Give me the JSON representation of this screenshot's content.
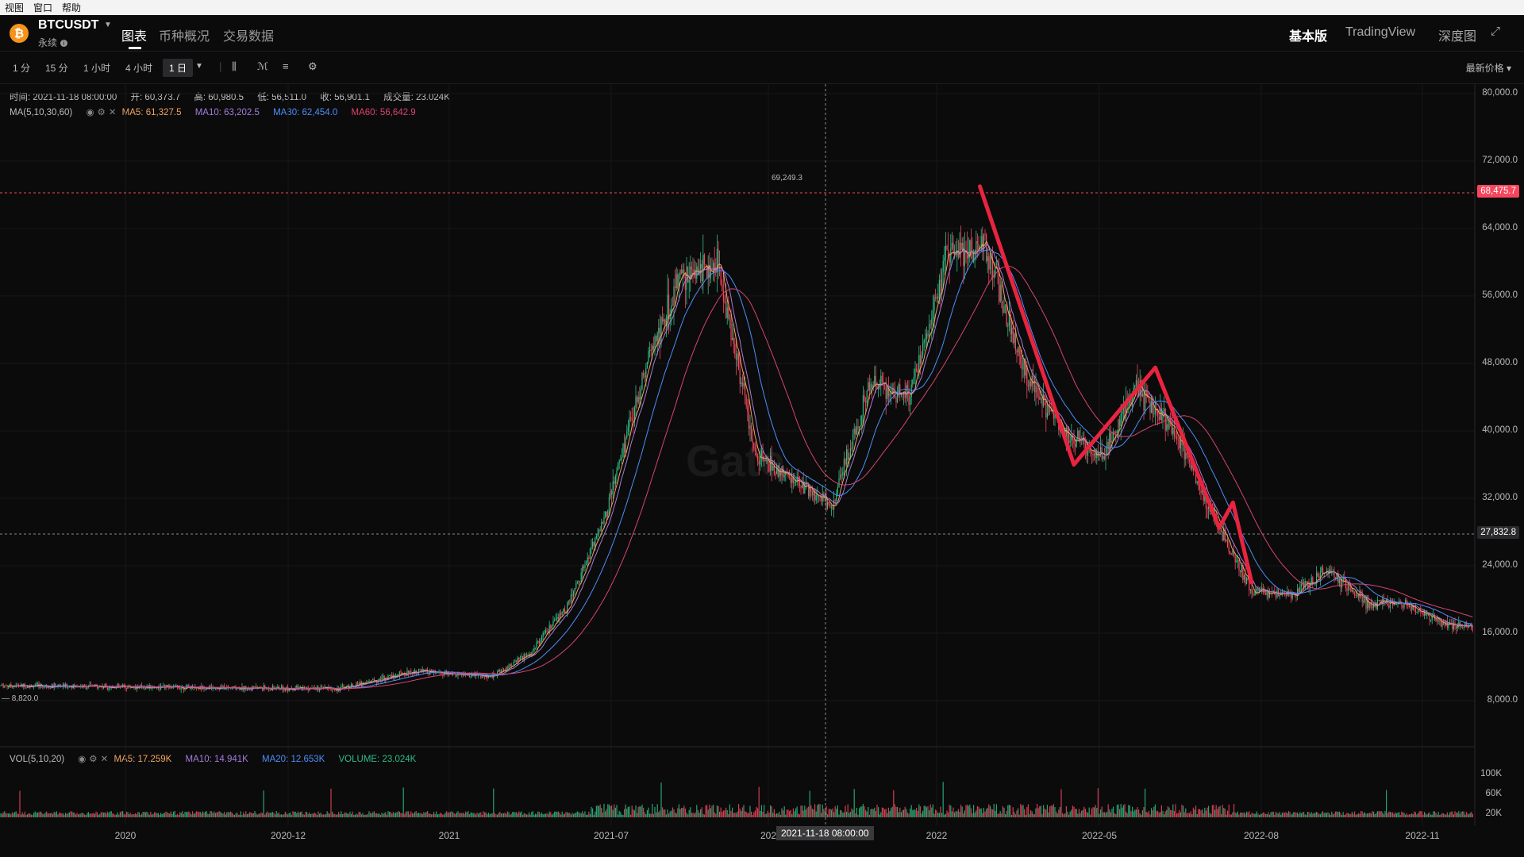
{
  "menubar": [
    "视图",
    "窗口",
    "帮助"
  ],
  "header": {
    "coin_glyph": "₿",
    "symbol": "BTCUSDT",
    "subtitle": "永续",
    "tabs": [
      "图表",
      "币种概况",
      "交易数据"
    ],
    "right_tabs": [
      "基本版",
      "TradingView",
      "深度图"
    ]
  },
  "toolbar": {
    "timeframes": [
      "1 分",
      "15 分",
      "1 小时",
      "4 小时",
      "1 日"
    ],
    "latest_price_label": "最新价格"
  },
  "info": {
    "time": "时间: 2021-11-18 08:00:00",
    "open": "开: 60,373.7",
    "high": "高: 60,980.5",
    "low": "低: 56,511.0",
    "close": "收: 56,901.1",
    "volume": "成交量: 23.024K"
  },
  "ma": {
    "label": "MA(5,10,30,60)",
    "ma5": "MA5: 61,327.5",
    "ma10": "MA10: 63,202.5",
    "ma30": "MA30: 62,454.0",
    "ma60": "MA60: 56,642.9"
  },
  "vol": {
    "label": "VOL(5,10,20)",
    "ma5": "MA5: 17.259K",
    "ma10": "MA10: 14.941K",
    "ma20": "MA20: 12.653K",
    "volume": "VOLUME: 23.024K"
  },
  "price_axis": [
    "80,000.0",
    "72,000.0",
    "64,000.0",
    "56,000.0",
    "48,000.0",
    "40,000.0",
    "32,000.0",
    "24,000.0",
    "16,000.0",
    "8,000.0"
  ],
  "volume_axis": [
    "100K",
    "60K",
    "20K"
  ],
  "time_axis": [
    "2020",
    "2020-12",
    "2021",
    "2021-07",
    "202",
    "2022",
    "2022-05",
    "2022-08",
    "2022-11"
  ],
  "crosshair_time": "2021-11-18 08:00:00",
  "last_price": "68,475.7",
  "cursor_price": "27,832.8",
  "high_marker": "69,249.3",
  "low_marker": "8,820.0",
  "watermark": "Gate",
  "colors": {
    "up": "#2ebd85",
    "down": "#f6465d",
    "ma5": "#f0a35e",
    "ma10": "#a77bd8",
    "ma30": "#4d8ef7",
    "ma60": "#d8456a",
    "annotation": "#e8243f"
  },
  "chart_data": {
    "type": "line",
    "series": [
      {
        "name": "BTCUSDT",
        "x": [
          "2020-08",
          "2020-10",
          "2020-11",
          "2020-12",
          "2021-01",
          "2021-02",
          "2021-03",
          "2021-04",
          "2021-05",
          "2021-06",
          "2021-07",
          "2021-08",
          "2021-09",
          "2021-10",
          "2021-11",
          "2021-12",
          "2022-01",
          "2022-02",
          "2022-03",
          "2022-04",
          "2022-05",
          "2022-06",
          "2022-07",
          "2022-08",
          "2022-09",
          "2022-10",
          "2022-11",
          "2022-12"
        ],
        "values": [
          11500,
          10800,
          13500,
          19000,
          30000,
          47000,
          58000,
          60000,
          37000,
          34000,
          31000,
          46000,
          44000,
          61000,
          62000,
          47000,
          40000,
          37000,
          45000,
          40000,
          30000,
          21000,
          20500,
          23500,
          19500,
          19500,
          17000,
          16800
        ]
      }
    ],
    "annotation_path": [
      [
        "2021-11-10",
        69000
      ],
      [
        "2022-01-24",
        36000
      ],
      [
        "2022-03-30",
        47500
      ],
      [
        "2022-05-20",
        28500
      ],
      [
        "2022-05-31",
        31500
      ],
      [
        "2022-06-15",
        22000
      ]
    ],
    "ylim": [
      0,
      84000
    ]
  }
}
